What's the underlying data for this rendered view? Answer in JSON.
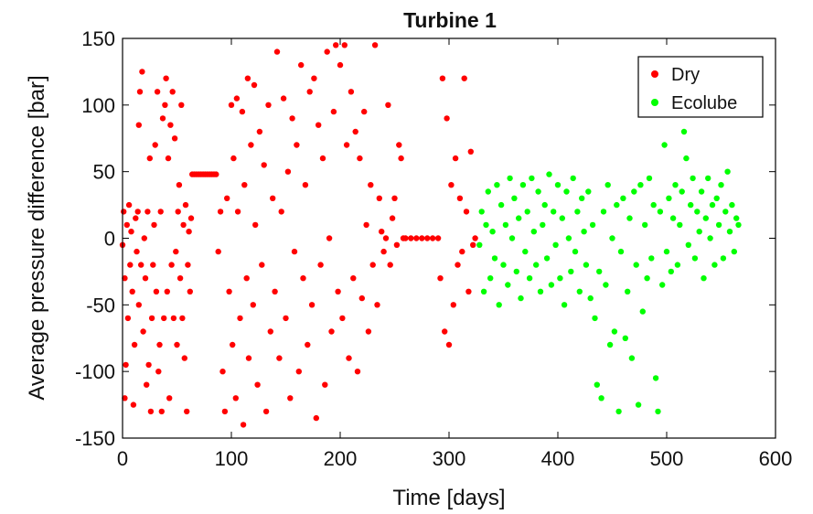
{
  "chart_data": {
    "type": "scatter",
    "title": "Turbine 1",
    "xlabel": "Time [days]",
    "ylabel": "Average pressure difference [bar]",
    "xlim": [
      0,
      600
    ],
    "ylim": [
      -150,
      150
    ],
    "xticks": [
      0,
      100,
      200,
      300,
      400,
      500,
      600
    ],
    "yticks": [
      -150,
      -100,
      -50,
      0,
      50,
      100,
      150
    ],
    "xtick_labels": [
      "0",
      "100",
      "200",
      "300",
      "400",
      "500",
      "600"
    ],
    "ytick_labels": [
      "-150",
      "-100",
      "-50",
      "0",
      "50",
      "100",
      "150"
    ],
    "grid": false,
    "legend_position": "top-right",
    "colors": {
      "Dry": "#ff0000",
      "Ecolube": "#00ff00"
    },
    "series": [
      {
        "name": "Dry",
        "color": "#ff0000",
        "points": [
          [
            0,
            -5
          ],
          [
            1,
            20
          ],
          [
            2,
            -30
          ],
          [
            2,
            -120
          ],
          [
            3,
            -95
          ],
          [
            4,
            10
          ],
          [
            5,
            -60
          ],
          [
            6,
            25
          ],
          [
            7,
            -20
          ],
          [
            8,
            5
          ],
          [
            9,
            -40
          ],
          [
            10,
            -125
          ],
          [
            11,
            -80
          ],
          [
            12,
            15
          ],
          [
            13,
            -10
          ],
          [
            14,
            20
          ],
          [
            15,
            85
          ],
          [
            15,
            -50
          ],
          [
            16,
            110
          ],
          [
            17,
            -20
          ],
          [
            18,
            125
          ],
          [
            19,
            -70
          ],
          [
            20,
            0
          ],
          [
            21,
            -30
          ],
          [
            22,
            -110
          ],
          [
            23,
            20
          ],
          [
            24,
            -95
          ],
          [
            25,
            60
          ],
          [
            26,
            -130
          ],
          [
            27,
            -60
          ],
          [
            28,
            -20
          ],
          [
            29,
            10
          ],
          [
            30,
            70
          ],
          [
            31,
            -40
          ],
          [
            32,
            110
          ],
          [
            33,
            -100
          ],
          [
            34,
            -80
          ],
          [
            35,
            20
          ],
          [
            36,
            -130
          ],
          [
            37,
            90
          ],
          [
            38,
            -60
          ],
          [
            39,
            100
          ],
          [
            40,
            120
          ],
          [
            41,
            -40
          ],
          [
            42,
            60
          ],
          [
            43,
            -120
          ],
          [
            44,
            85
          ],
          [
            45,
            -20
          ],
          [
            46,
            110
          ],
          [
            47,
            -60
          ],
          [
            48,
            75
          ],
          [
            49,
            -10
          ],
          [
            50,
            -80
          ],
          [
            51,
            20
          ],
          [
            52,
            40
          ],
          [
            53,
            -30
          ],
          [
            54,
            100
          ],
          [
            55,
            -60
          ],
          [
            56,
            10
          ],
          [
            57,
            -90
          ],
          [
            58,
            25
          ],
          [
            59,
            -130
          ],
          [
            60,
            -20
          ],
          [
            61,
            5
          ],
          [
            62,
            -40
          ],
          [
            63,
            15
          ],
          [
            64,
            48
          ],
          [
            66,
            48
          ],
          [
            68,
            48
          ],
          [
            70,
            48
          ],
          [
            72,
            48
          ],
          [
            74,
            48
          ],
          [
            76,
            48
          ],
          [
            78,
            48
          ],
          [
            80,
            48
          ],
          [
            82,
            48
          ],
          [
            84,
            48
          ],
          [
            86,
            48
          ],
          [
            88,
            -10
          ],
          [
            90,
            20
          ],
          [
            92,
            -100
          ],
          [
            94,
            -130
          ],
          [
            96,
            30
          ],
          [
            98,
            -40
          ],
          [
            100,
            100
          ],
          [
            101,
            -80
          ],
          [
            102,
            60
          ],
          [
            104,
            -120
          ],
          [
            105,
            105
          ],
          [
            106,
            20
          ],
          [
            108,
            -60
          ],
          [
            110,
            95
          ],
          [
            111,
            -140
          ],
          [
            112,
            40
          ],
          [
            114,
            -30
          ],
          [
            115,
            120
          ],
          [
            116,
            -90
          ],
          [
            118,
            70
          ],
          [
            120,
            -50
          ],
          [
            121,
            115
          ],
          [
            122,
            10
          ],
          [
            124,
            -110
          ],
          [
            126,
            80
          ],
          [
            128,
            -20
          ],
          [
            130,
            55
          ],
          [
            132,
            -130
          ],
          [
            134,
            100
          ],
          [
            136,
            -70
          ],
          [
            138,
            30
          ],
          [
            140,
            -40
          ],
          [
            142,
            140
          ],
          [
            144,
            -90
          ],
          [
            146,
            20
          ],
          [
            148,
            105
          ],
          [
            150,
            -60
          ],
          [
            152,
            50
          ],
          [
            154,
            -120
          ],
          [
            156,
            90
          ],
          [
            158,
            -10
          ],
          [
            160,
            70
          ],
          [
            162,
            -100
          ],
          [
            164,
            130
          ],
          [
            166,
            -30
          ],
          [
            168,
            40
          ],
          [
            170,
            -80
          ],
          [
            172,
            110
          ],
          [
            174,
            -50
          ],
          [
            176,
            120
          ],
          [
            178,
            -135
          ],
          [
            180,
            85
          ],
          [
            182,
            -20
          ],
          [
            184,
            60
          ],
          [
            186,
            -110
          ],
          [
            188,
            140
          ],
          [
            190,
            0
          ],
          [
            192,
            -70
          ],
          [
            194,
            95
          ],
          [
            196,
            145
          ],
          [
            198,
            -40
          ],
          [
            200,
            130
          ],
          [
            202,
            -60
          ],
          [
            204,
            145
          ],
          [
            206,
            70
          ],
          [
            208,
            -90
          ],
          [
            210,
            110
          ],
          [
            212,
            -30
          ],
          [
            214,
            80
          ],
          [
            216,
            -100
          ],
          [
            218,
            60
          ],
          [
            220,
            -45
          ],
          [
            222,
            95
          ],
          [
            224,
            10
          ],
          [
            226,
            -70
          ],
          [
            228,
            40
          ],
          [
            230,
            -20
          ],
          [
            232,
            145
          ],
          [
            234,
            -50
          ],
          [
            236,
            30
          ],
          [
            238,
            5
          ],
          [
            240,
            -10
          ],
          [
            242,
            0
          ],
          [
            244,
            100
          ],
          [
            246,
            -20
          ],
          [
            248,
            15
          ],
          [
            250,
            30
          ],
          [
            252,
            -5
          ],
          [
            254,
            70
          ],
          [
            256,
            60
          ],
          [
            258,
            0
          ],
          [
            260,
            0
          ],
          [
            265,
            0
          ],
          [
            270,
            0
          ],
          [
            275,
            0
          ],
          [
            280,
            0
          ],
          [
            285,
            0
          ],
          [
            290,
            0
          ],
          [
            292,
            -30
          ],
          [
            294,
            120
          ],
          [
            296,
            -70
          ],
          [
            298,
            90
          ],
          [
            300,
            -80
          ],
          [
            302,
            40
          ],
          [
            304,
            -50
          ],
          [
            306,
            60
          ],
          [
            308,
            -20
          ],
          [
            310,
            30
          ],
          [
            312,
            -10
          ],
          [
            314,
            120
          ],
          [
            316,
            20
          ],
          [
            318,
            -40
          ],
          [
            320,
            65
          ],
          [
            322,
            -5
          ],
          [
            324,
            0
          ]
        ]
      },
      {
        "name": "Ecolube",
        "color": "#00ff00",
        "points": [
          [
            328,
            -5
          ],
          [
            330,
            20
          ],
          [
            332,
            -40
          ],
          [
            334,
            10
          ],
          [
            336,
            35
          ],
          [
            338,
            -30
          ],
          [
            340,
            5
          ],
          [
            342,
            -15
          ],
          [
            344,
            40
          ],
          [
            346,
            -50
          ],
          [
            348,
            25
          ],
          [
            350,
            -20
          ],
          [
            352,
            10
          ],
          [
            354,
            -35
          ],
          [
            356,
            45
          ],
          [
            358,
            0
          ],
          [
            360,
            30
          ],
          [
            362,
            -25
          ],
          [
            364,
            15
          ],
          [
            366,
            -45
          ],
          [
            368,
            40
          ],
          [
            370,
            -10
          ],
          [
            372,
            20
          ],
          [
            374,
            -30
          ],
          [
            376,
            45
          ],
          [
            378,
            5
          ],
          [
            380,
            -20
          ],
          [
            382,
            35
          ],
          [
            384,
            -40
          ],
          [
            386,
            10
          ],
          [
            388,
            25
          ],
          [
            390,
            -15
          ],
          [
            392,
            48
          ],
          [
            394,
            -35
          ],
          [
            396,
            20
          ],
          [
            398,
            -5
          ],
          [
            400,
            40
          ],
          [
            402,
            -30
          ],
          [
            404,
            15
          ],
          [
            406,
            -50
          ],
          [
            408,
            35
          ],
          [
            410,
            0
          ],
          [
            412,
            -25
          ],
          [
            414,
            45
          ],
          [
            416,
            -10
          ],
          [
            418,
            20
          ],
          [
            420,
            -40
          ],
          [
            422,
            30
          ],
          [
            424,
            5
          ],
          [
            426,
            -20
          ],
          [
            428,
            35
          ],
          [
            430,
            -45
          ],
          [
            432,
            10
          ],
          [
            434,
            -60
          ],
          [
            436,
            -110
          ],
          [
            438,
            -25
          ],
          [
            440,
            -120
          ],
          [
            442,
            20
          ],
          [
            444,
            -35
          ],
          [
            446,
            40
          ],
          [
            448,
            -80
          ],
          [
            450,
            0
          ],
          [
            452,
            -70
          ],
          [
            454,
            25
          ],
          [
            456,
            -130
          ],
          [
            458,
            -10
          ],
          [
            460,
            30
          ],
          [
            462,
            -75
          ],
          [
            464,
            -40
          ],
          [
            466,
            15
          ],
          [
            468,
            -90
          ],
          [
            470,
            35
          ],
          [
            472,
            -20
          ],
          [
            474,
            -125
          ],
          [
            476,
            40
          ],
          [
            478,
            -55
          ],
          [
            480,
            10
          ],
          [
            482,
            -30
          ],
          [
            484,
            45
          ],
          [
            486,
            -15
          ],
          [
            488,
            25
          ],
          [
            490,
            -105
          ],
          [
            492,
            -130
          ],
          [
            494,
            20
          ],
          [
            496,
            -35
          ],
          [
            498,
            70
          ],
          [
            500,
            -10
          ],
          [
            502,
            30
          ],
          [
            504,
            -25
          ],
          [
            506,
            15
          ],
          [
            508,
            40
          ],
          [
            510,
            -20
          ],
          [
            512,
            10
          ],
          [
            514,
            35
          ],
          [
            516,
            80
          ],
          [
            518,
            60
          ],
          [
            520,
            -5
          ],
          [
            522,
            25
          ],
          [
            524,
            45
          ],
          [
            526,
            -15
          ],
          [
            528,
            20
          ],
          [
            530,
            5
          ],
          [
            532,
            35
          ],
          [
            534,
            -30
          ],
          [
            536,
            15
          ],
          [
            538,
            45
          ],
          [
            540,
            0
          ],
          [
            542,
            25
          ],
          [
            544,
            -20
          ],
          [
            546,
            30
          ],
          [
            548,
            10
          ],
          [
            550,
            40
          ],
          [
            552,
            -15
          ],
          [
            554,
            20
          ],
          [
            556,
            50
          ],
          [
            558,
            5
          ],
          [
            560,
            25
          ],
          [
            562,
            -10
          ],
          [
            564,
            15
          ],
          [
            566,
            10
          ]
        ]
      }
    ]
  }
}
